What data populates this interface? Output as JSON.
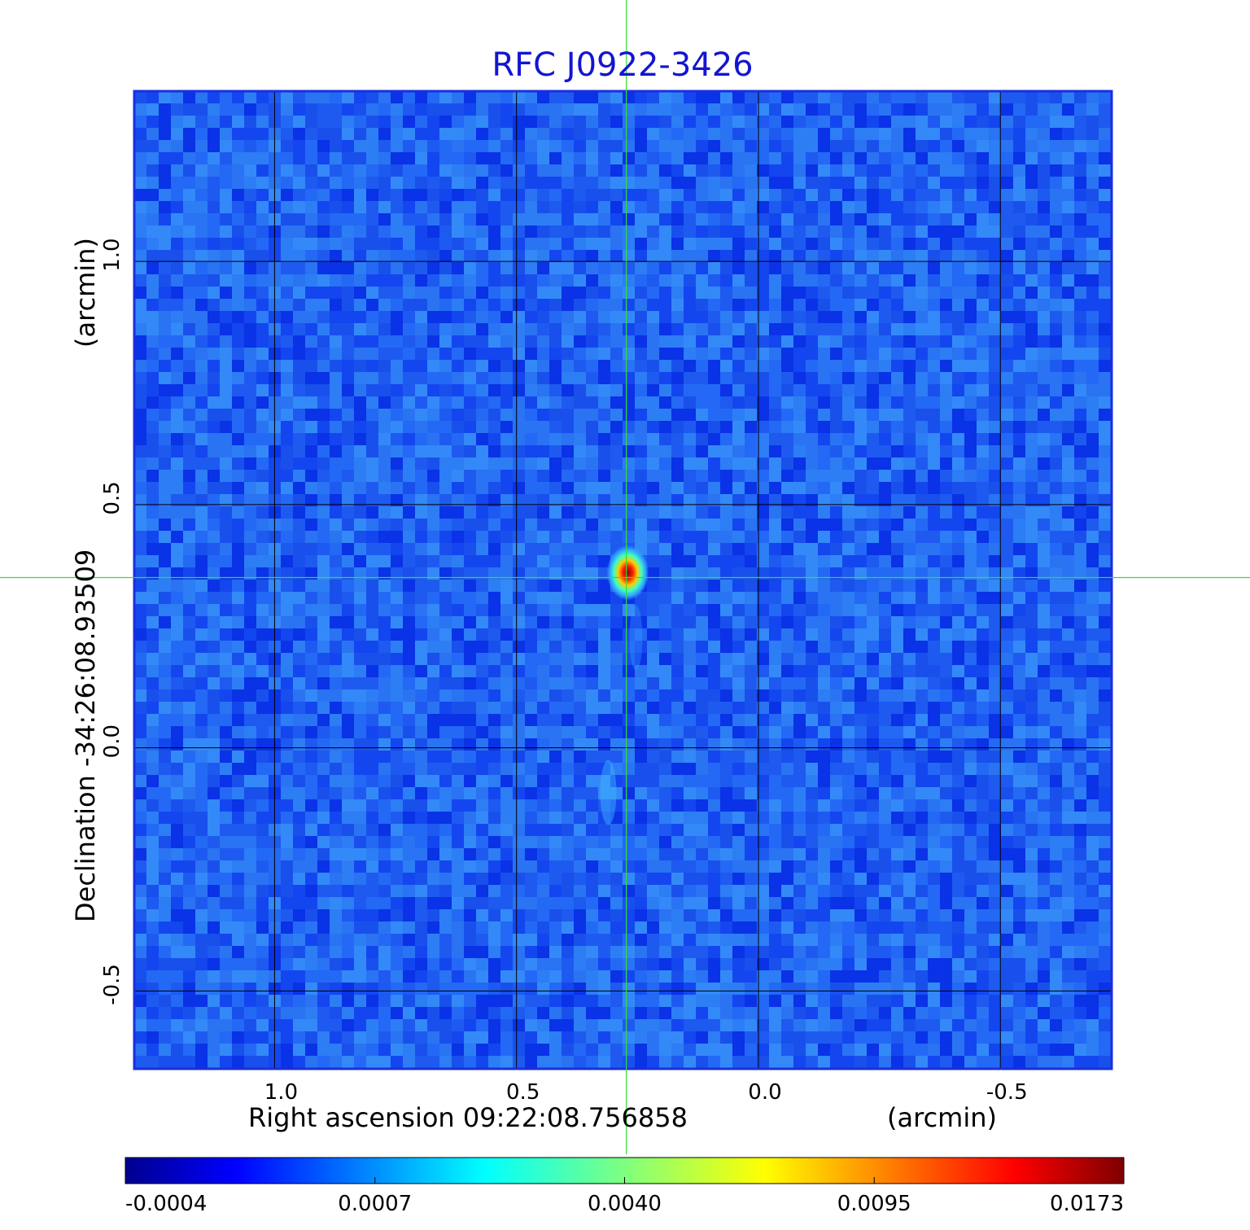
{
  "chart_data": {
    "type": "heatmap",
    "title": "RFC J0922-3426",
    "xlabel": "Right ascension  09:22:08.756858",
    "xunit": "(arcmin)",
    "ylabel": "Declination  -34:26:08.93509",
    "yunit": "(arcmin)",
    "x_ticks": [
      {
        "value": 1.0,
        "label": "1.0"
      },
      {
        "value": 0.5,
        "label": "0.5"
      },
      {
        "value": 0.0,
        "label": "0.0"
      },
      {
        "value": -0.5,
        "label": "-0.5"
      }
    ],
    "y_ticks": [
      {
        "value": 1.0,
        "label": "1.0"
      },
      {
        "value": 0.5,
        "label": "0.5"
      },
      {
        "value": 0.0,
        "label": "0.0"
      },
      {
        "value": -0.5,
        "label": "-0.5"
      }
    ],
    "xlim": [
      1.29,
      -0.73
    ],
    "ylim": [
      -0.66,
      1.35
    ],
    "x_reversed": true,
    "grid": true,
    "crosshair": {
      "x": 0.273,
      "y": 0.35
    },
    "source_peak": {
      "x": 0.27,
      "y": 0.36,
      "value": 0.0173
    },
    "colorbar": {
      "ticks": [
        "-0.0004",
        "0.0007",
        "0.0040",
        "0.0095",
        "0.0173"
      ],
      "range": [
        -0.0004,
        0.0173
      ],
      "colormap": "jet"
    },
    "colors": {
      "title": "#1414d2",
      "background_map": "#1e5af0",
      "frame": "#1a2ee0",
      "crosshair": "#33dd33",
      "grid": "#000000"
    }
  }
}
